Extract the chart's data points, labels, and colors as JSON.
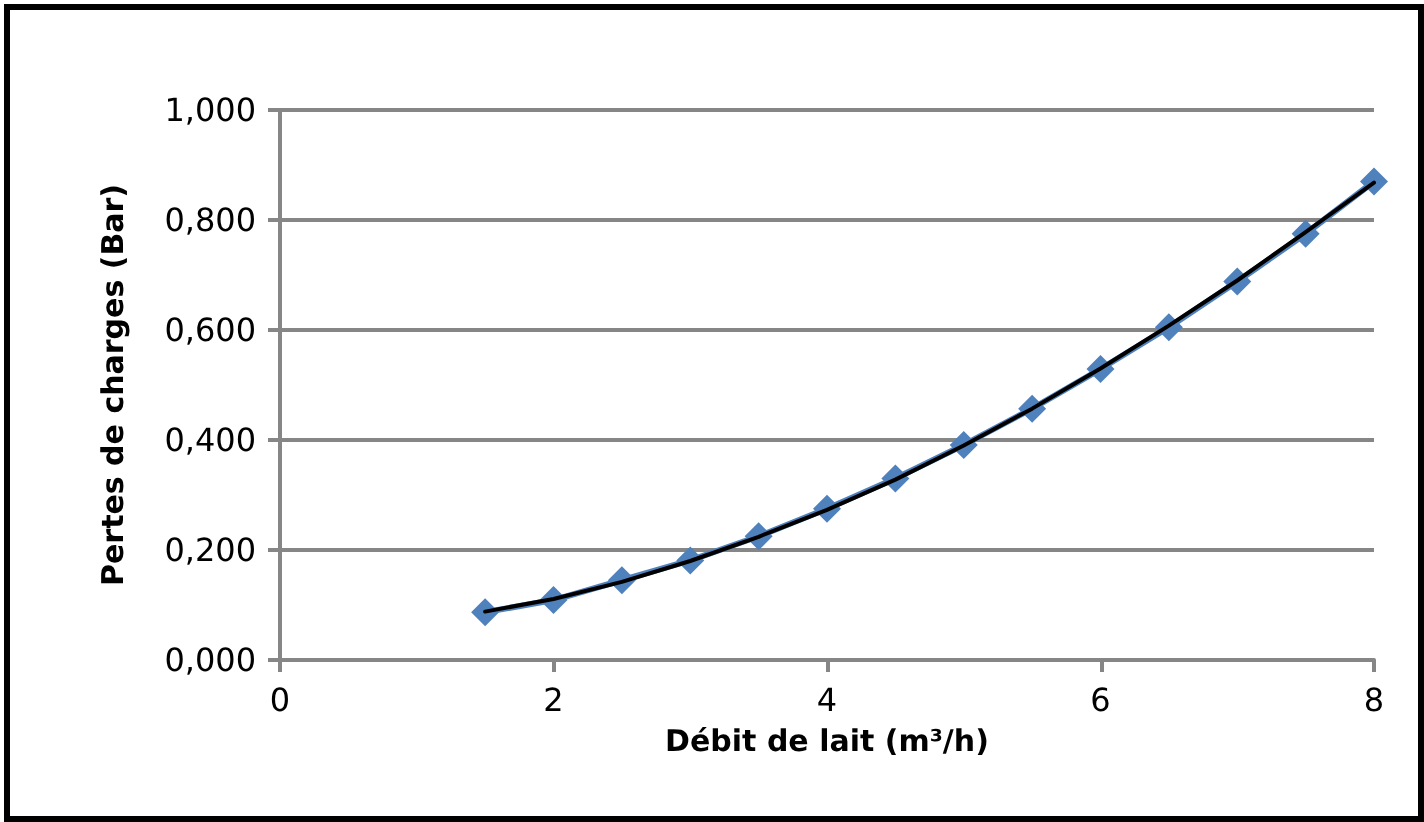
{
  "chart_data": {
    "type": "line",
    "xlabel": "Débit de lait (m³/h)",
    "ylabel": "Pertes de charges (Bar)",
    "x": [
      1.5,
      2,
      2.5,
      3,
      3.5,
      4,
      4.5,
      5,
      5.5,
      6,
      6.5,
      7,
      7.5,
      8
    ],
    "series": [
      {
        "color": "#4f81bd",
        "marker": "diamond",
        "values": [
          0.087,
          0.109,
          0.145,
          0.181,
          0.225,
          0.275,
          0.33,
          0.391,
          0.457,
          0.529,
          0.605,
          0.688,
          0.775,
          0.87
        ]
      },
      {
        "type": "line",
        "color": "#000000",
        "marker": "none",
        "x": [
          1.5,
          2,
          2.5,
          3,
          3.5,
          4,
          4.5,
          5,
          5.5,
          6,
          6.5,
          7,
          7.5,
          8
        ],
        "values": [
          0.088,
          0.111,
          0.142,
          0.18,
          0.224,
          0.273,
          0.328,
          0.39,
          0.457,
          0.53,
          0.608,
          0.69,
          0.778,
          0.868
        ]
      }
    ],
    "xlim": [
      0,
      8
    ],
    "xticks": [
      0,
      2,
      4,
      6,
      8
    ],
    "ylim": [
      0,
      1
    ],
    "yticks": [
      {
        "value": 0,
        "label": "0,000"
      },
      {
        "value": 0.2,
        "label": "0,200"
      },
      {
        "value": 0.4,
        "label": "0,400"
      },
      {
        "value": 0.6,
        "label": "0,600"
      },
      {
        "value": 0.8,
        "label": "0,800"
      },
      {
        "value": 1,
        "label": "1,000"
      }
    ],
    "grid": "y",
    "line_style": "solid"
  }
}
